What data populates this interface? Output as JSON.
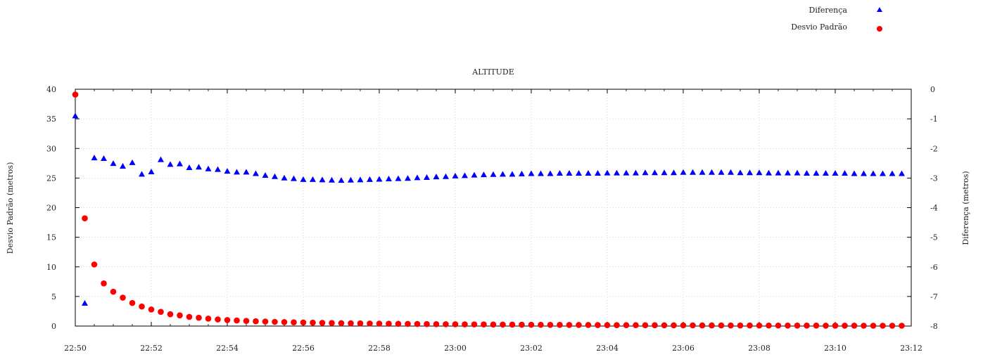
{
  "chart_data": {
    "type": "scatter",
    "title": "ALTITUDE",
    "xlabel": "",
    "ylabel": "Desvio Padrão (metros)",
    "y2label": "Diferença (metros)",
    "x_tick_labels": [
      "22:50",
      "22:52",
      "22:54",
      "22:56",
      "22:58",
      "23:00",
      "23:02",
      "23:04",
      "23:06",
      "23:08",
      "23:10",
      "23:12"
    ],
    "xlim": [
      "22:50",
      "23:12"
    ],
    "ylim": [
      0,
      40
    ],
    "y2lim": [
      -8,
      0
    ],
    "y_ticks": [
      0,
      5,
      10,
      15,
      20,
      25,
      30,
      35,
      40
    ],
    "y2_ticks": [
      0,
      -1,
      -2,
      -3,
      -4,
      -5,
      -6,
      -7,
      -8
    ],
    "grid": true,
    "legend_position": "top-right",
    "series": [
      {
        "name": "Diferença",
        "axis": "right",
        "marker": "triangle",
        "color": "#0000ff",
        "x": [
          "22:50:00",
          "22:50:15",
          "22:50:30",
          "22:50:45",
          "22:51:00",
          "22:51:15",
          "22:51:30",
          "22:51:45",
          "22:52:00",
          "22:52:15",
          "22:52:30",
          "22:52:45",
          "22:53:00",
          "22:53:15",
          "22:53:30",
          "22:53:45",
          "22:54:00",
          "22:54:15",
          "22:54:30",
          "22:54:45",
          "22:55:00",
          "22:55:15",
          "22:55:30",
          "22:55:45",
          "22:56:00",
          "22:56:15",
          "22:56:30",
          "22:56:45",
          "22:57:00",
          "22:57:15",
          "22:57:30",
          "22:57:45",
          "22:58:00",
          "22:58:15",
          "22:58:30",
          "22:58:45",
          "22:59:00",
          "22:59:15",
          "22:59:30",
          "22:59:45",
          "23:00:00",
          "23:00:15",
          "23:00:30",
          "23:00:45",
          "23:01:00",
          "23:01:15",
          "23:01:30",
          "23:01:45",
          "23:02:00",
          "23:02:15",
          "23:02:30",
          "23:02:45",
          "23:03:00",
          "23:03:15",
          "23:03:30",
          "23:03:45",
          "23:04:00",
          "23:04:15",
          "23:04:30",
          "23:04:45",
          "23:05:00",
          "23:05:15",
          "23:05:30",
          "23:05:45",
          "23:06:00",
          "23:06:15",
          "23:06:30",
          "23:06:45",
          "23:07:00",
          "23:07:15",
          "23:07:30",
          "23:07:45",
          "23:08:00",
          "23:08:15",
          "23:08:30",
          "23:08:45",
          "23:09:00",
          "23:09:15",
          "23:09:30",
          "23:09:45",
          "23:10:00",
          "23:10:15",
          "23:10:30",
          "23:10:45",
          "23:11:00",
          "23:11:15",
          "23:11:30",
          "23:11:45"
        ],
        "values": [
          -0.91,
          -7.24,
          -2.33,
          -2.35,
          -2.52,
          -2.61,
          -2.49,
          -2.88,
          -2.8,
          -2.39,
          -2.55,
          -2.53,
          -2.66,
          -2.64,
          -2.7,
          -2.72,
          -2.78,
          -2.81,
          -2.81,
          -2.86,
          -2.92,
          -2.96,
          -3.01,
          -3.03,
          -3.06,
          -3.06,
          -3.07,
          -3.08,
          -3.09,
          -3.08,
          -3.07,
          -3.06,
          -3.05,
          -3.04,
          -3.03,
          -3.02,
          -3.0,
          -2.99,
          -2.97,
          -2.96,
          -2.94,
          -2.93,
          -2.91,
          -2.9,
          -2.89,
          -2.88,
          -2.88,
          -2.87,
          -2.86,
          -2.86,
          -2.86,
          -2.85,
          -2.85,
          -2.85,
          -2.85,
          -2.85,
          -2.84,
          -2.84,
          -2.84,
          -2.84,
          -2.83,
          -2.83,
          -2.83,
          -2.83,
          -2.82,
          -2.82,
          -2.82,
          -2.82,
          -2.82,
          -2.82,
          -2.83,
          -2.83,
          -2.83,
          -2.84,
          -2.84,
          -2.84,
          -2.84,
          -2.85,
          -2.85,
          -2.85,
          -2.85,
          -2.85,
          -2.86,
          -2.86,
          -2.86,
          -2.86,
          -2.86,
          -2.86
        ]
      },
      {
        "name": "Desvio Padrão",
        "axis": "left",
        "marker": "circle",
        "color": "#ff0000",
        "x": [
          "22:50:00",
          "22:50:15",
          "22:50:30",
          "22:50:45",
          "22:51:00",
          "22:51:15",
          "22:51:30",
          "22:51:45",
          "22:52:00",
          "22:52:15",
          "22:52:30",
          "22:52:45",
          "22:53:00",
          "22:53:15",
          "22:53:30",
          "22:53:45",
          "22:54:00",
          "22:54:15",
          "22:54:30",
          "22:54:45",
          "22:55:00",
          "22:55:15",
          "22:55:30",
          "22:55:45",
          "22:56:00",
          "22:56:15",
          "22:56:30",
          "22:56:45",
          "22:57:00",
          "22:57:15",
          "22:57:30",
          "22:57:45",
          "22:58:00",
          "22:58:15",
          "22:58:30",
          "22:58:45",
          "22:59:00",
          "22:59:15",
          "22:59:30",
          "22:59:45",
          "23:00:00",
          "23:00:15",
          "23:00:30",
          "23:00:45",
          "23:01:00",
          "23:01:15",
          "23:01:30",
          "23:01:45",
          "23:02:00",
          "23:02:15",
          "23:02:30",
          "23:02:45",
          "23:03:00",
          "23:03:15",
          "23:03:30",
          "23:03:45",
          "23:04:00",
          "23:04:15",
          "23:04:30",
          "23:04:45",
          "23:05:00",
          "23:05:15",
          "23:05:30",
          "23:05:45",
          "23:06:00",
          "23:06:15",
          "23:06:30",
          "23:06:45",
          "23:07:00",
          "23:07:15",
          "23:07:30",
          "23:07:45",
          "23:08:00",
          "23:08:15",
          "23:08:30",
          "23:08:45",
          "23:09:00",
          "23:09:15",
          "23:09:30",
          "23:09:45",
          "23:10:00",
          "23:10:15",
          "23:10:30",
          "23:10:45",
          "23:11:00",
          "23:11:15",
          "23:11:30",
          "23:11:45"
        ],
        "values": [
          39.1,
          18.2,
          10.4,
          7.2,
          5.8,
          4.8,
          3.9,
          3.3,
          2.8,
          2.4,
          2.0,
          1.8,
          1.55,
          1.4,
          1.25,
          1.12,
          1.02,
          0.94,
          0.87,
          0.81,
          0.76,
          0.71,
          0.67,
          0.63,
          0.6,
          0.57,
          0.54,
          0.52,
          0.49,
          0.47,
          0.45,
          0.43,
          0.41,
          0.39,
          0.38,
          0.36,
          0.35,
          0.33,
          0.32,
          0.31,
          0.3,
          0.29,
          0.28,
          0.27,
          0.26,
          0.25,
          0.24,
          0.23,
          0.22,
          0.21,
          0.2,
          0.2,
          0.19,
          0.18,
          0.18,
          0.17,
          0.16,
          0.16,
          0.15,
          0.15,
          0.14,
          0.14,
          0.13,
          0.13,
          0.12,
          0.12,
          0.11,
          0.11,
          0.11,
          0.1,
          0.1,
          0.1,
          0.09,
          0.09,
          0.09,
          0.08,
          0.08,
          0.08,
          0.08,
          0.07,
          0.07,
          0.07,
          0.07,
          0.06,
          0.06,
          0.06,
          0.06,
          0.06
        ]
      }
    ]
  }
}
